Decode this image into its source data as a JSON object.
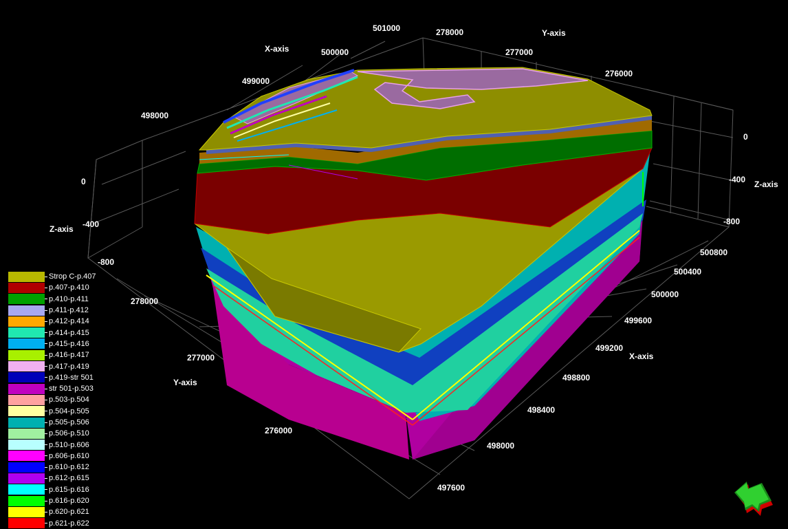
{
  "viewer": {
    "axes": {
      "x_axis_label": "X-axis",
      "y_axis_label": "Y-axis",
      "z_axis_label": "Z-axis",
      "x_top_ticks": [
        "498000",
        "499000",
        "500000",
        "501000"
      ],
      "y_top_ticks": [
        "278000",
        "277000",
        "276000"
      ],
      "x_right_ticks": [
        "500800",
        "500400",
        "500000",
        "499600",
        "499200",
        "498800",
        "498400",
        "498000",
        "497600"
      ],
      "y_left_ticks": [
        "278000",
        "277000",
        "276000"
      ],
      "z_left_ticks": [
        "0",
        "-400",
        "-800"
      ],
      "z_right_ticks": [
        "0",
        "-400",
        "-800"
      ]
    },
    "legend": [
      {
        "label": "Strop C-p.407",
        "color": "#b8b800"
      },
      {
        "label": "p.407-p.410",
        "color": "#b00000"
      },
      {
        "label": "p.410-p.411",
        "color": "#00a000"
      },
      {
        "label": "p.411-p.412",
        "color": "#a8a8f0"
      },
      {
        "label": "p.412-p.414",
        "color": "#ffa800"
      },
      {
        "label": "p.414-p.415",
        "color": "#20e8b0"
      },
      {
        "label": "p.415-p.416",
        "color": "#00b0f0"
      },
      {
        "label": "p.416-p.417",
        "color": "#a8f000"
      },
      {
        "label": "p.417-p.419",
        "color": "#f0b0f0"
      },
      {
        "label": "p.419-str 501",
        "color": "#0000b8"
      },
      {
        "label": "str 501-p.503",
        "color": "#c000c0"
      },
      {
        "label": "p.503-p.504",
        "color": "#ffa0a0"
      },
      {
        "label": "p.504-p.505",
        "color": "#ffffa0"
      },
      {
        "label": "p.505-p.506",
        "color": "#00b0b0"
      },
      {
        "label": "p.506-p.510",
        "color": "#a0f0a0"
      },
      {
        "label": "p.510-p.606",
        "color": "#b8ffff"
      },
      {
        "label": "p.606-p.610",
        "color": "#ff00ff"
      },
      {
        "label": "p.610-p.612",
        "color": "#0000ff"
      },
      {
        "label": "p.612-p.615",
        "color": "#b000f0"
      },
      {
        "label": "p.615-p.616",
        "color": "#00ffff"
      },
      {
        "label": "p.616-p.620",
        "color": "#00ff00"
      },
      {
        "label": "p.620-p.621",
        "color": "#ffff00"
      },
      {
        "label": "p.621-p.622",
        "color": "#ff0000"
      }
    ],
    "nav_widget": {
      "icon": "navigation-arrow-icon"
    }
  }
}
